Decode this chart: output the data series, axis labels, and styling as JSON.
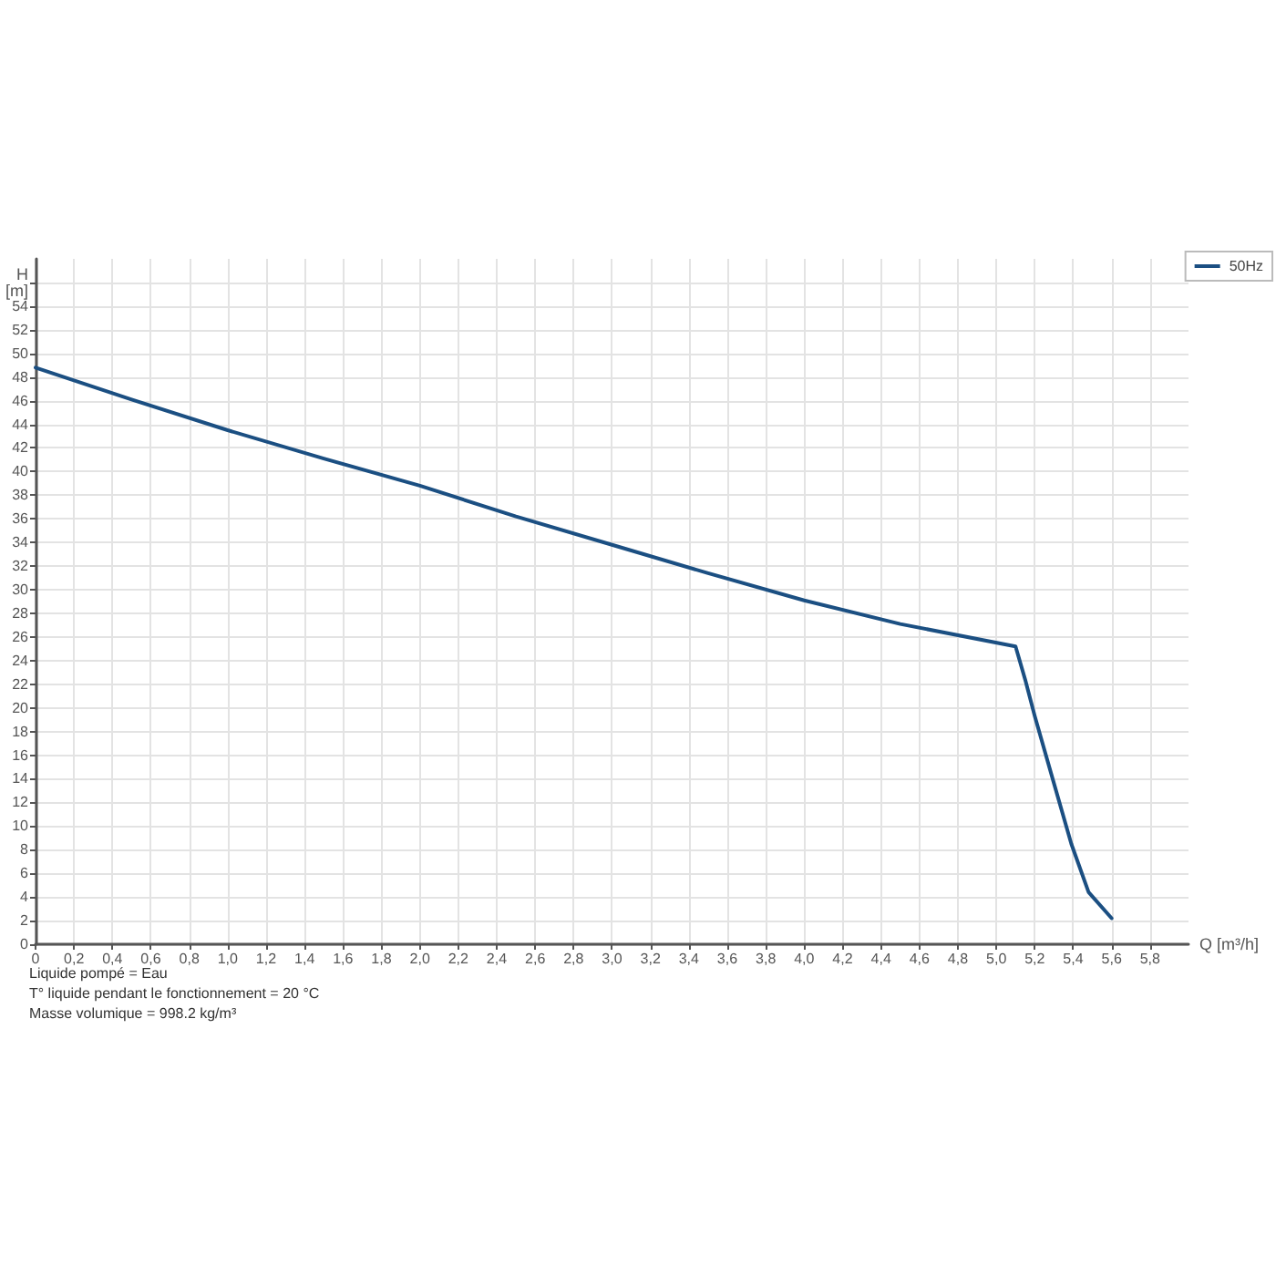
{
  "chart_data": {
    "type": "line",
    "xlabel": "Q [m³/h]",
    "ylabel": "H\n[m]",
    "xlim": [
      0,
      6.0
    ],
    "ylim": [
      0,
      58
    ],
    "xticks": [
      0,
      {
        "value": 0.2,
        "label": "0,2"
      },
      {
        "value": 0.4,
        "label": "0,4"
      },
      {
        "value": 0.6,
        "label": "0,6"
      },
      {
        "value": 0.8,
        "label": "0,8"
      },
      {
        "value": 1.0,
        "label": "1,0"
      },
      {
        "value": 1.2,
        "label": "1,2"
      },
      {
        "value": 1.4,
        "label": "1,4"
      },
      {
        "value": 1.6,
        "label": "1,6"
      },
      {
        "value": 1.8,
        "label": "1,8"
      },
      {
        "value": 2.0,
        "label": "2,0"
      },
      {
        "value": 2.2,
        "label": "2,2"
      },
      {
        "value": 2.4,
        "label": "2,4"
      },
      {
        "value": 2.6,
        "label": "2,6"
      },
      {
        "value": 2.8,
        "label": "2,8"
      },
      {
        "value": 3.0,
        "label": "3,0"
      },
      {
        "value": 3.2,
        "label": "3,2"
      },
      {
        "value": 3.4,
        "label": "3,4"
      },
      {
        "value": 3.6,
        "label": "3,6"
      },
      {
        "value": 3.8,
        "label": "3,8"
      },
      {
        "value": 4.0,
        "label": "4,0"
      },
      {
        "value": 4.2,
        "label": "4,2"
      },
      {
        "value": 4.4,
        "label": "4,4"
      },
      {
        "value": 4.6,
        "label": "4,6"
      },
      {
        "value": 4.8,
        "label": "4,8"
      },
      {
        "value": 5.0,
        "label": "5,0"
      },
      {
        "value": 5.2,
        "label": "5,2"
      },
      {
        "value": 5.4,
        "label": "5,4"
      },
      {
        "value": 5.6,
        "label": "5,6"
      },
      {
        "value": 5.8,
        "label": "5,8"
      }
    ],
    "yticks": [
      0,
      2,
      4,
      6,
      8,
      10,
      12,
      14,
      16,
      18,
      20,
      22,
      24,
      26,
      28,
      30,
      32,
      34,
      36,
      38,
      40,
      42,
      44,
      46,
      48,
      50,
      52,
      54,
      {
        "value": 56,
        "label": null
      }
    ],
    "x": [
      0,
      0.5,
      1.0,
      1.5,
      2.0,
      2.5,
      3.0,
      3.5,
      4.0,
      4.5,
      5.1,
      5.15,
      5.2,
      5.3,
      5.39,
      5.48,
      5.6
    ],
    "series": [
      {
        "name": "50Hz",
        "color": "#1b4f82",
        "values": [
          48.8,
          46.1,
          43.5,
          41.1,
          38.8,
          36.2,
          33.8,
          31.4,
          29.1,
          27.1,
          25.2,
          22.4,
          19.3,
          13.6,
          8.5,
          4.4,
          2.2
        ]
      }
    ],
    "grid": true,
    "legend": "top right",
    "marker": "none",
    "line_style": "solid",
    "annotations": [
      "Liquide pompé = Eau",
      "T° liquide pendant le fonctionnement = 20 °C",
      "Masse volumique = 998.2 kg/m³"
    ]
  }
}
